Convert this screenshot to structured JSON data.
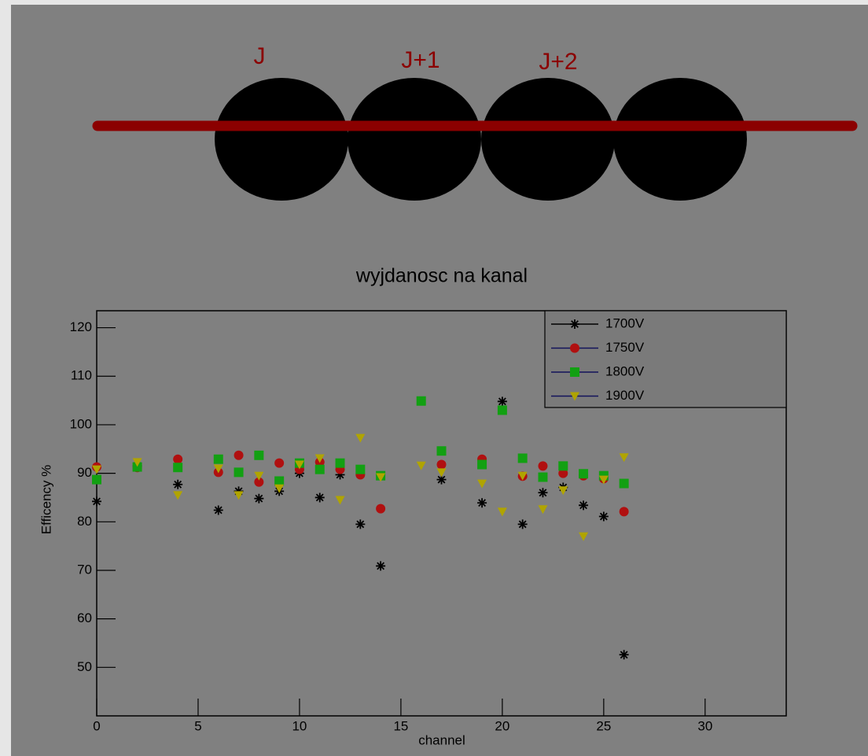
{
  "diagram": {
    "labels": [
      "J",
      "J+1",
      "J+2"
    ]
  },
  "chart_data": {
    "type": "scatter",
    "title": "wyjdanosc na kanal",
    "x_label": "channel",
    "y_label": "Efficency %",
    "xlim": [
      0,
      34
    ],
    "ylim": [
      40,
      123.5
    ],
    "xticks": [
      0,
      5,
      10,
      15,
      20,
      25,
      30
    ],
    "yticks": [
      50,
      60,
      70,
      80,
      90,
      100,
      110,
      120
    ],
    "legend": "upper right",
    "series": [
      {
        "name": "1700V",
        "color": "#000000",
        "line_color": "#000000",
        "marker": "star",
        "x": [
          0,
          2,
          4,
          6,
          7,
          8,
          9,
          10,
          11,
          12,
          13,
          14,
          17,
          19,
          20,
          21,
          22,
          23,
          24,
          25,
          26
        ],
        "values": [
          84.2,
          91.5,
          87.7,
          82.4,
          86.3,
          84.8,
          86.3,
          90,
          85,
          89.7,
          79.5,
          70.9,
          88.7,
          83.9,
          104.8,
          79.5,
          86,
          87.1,
          83.4,
          81.1,
          52.6
        ]
      },
      {
        "name": "1750V",
        "color": "#b01010",
        "line_color": "#12125a",
        "marker": "circle",
        "x": [
          0,
          2,
          4,
          6,
          7,
          8,
          9,
          10,
          11,
          12,
          13,
          14,
          17,
          19,
          21,
          22,
          23,
          24,
          25,
          26
        ],
        "values": [
          91.3,
          91.2,
          92.9,
          90.2,
          93.7,
          88.2,
          92.1,
          90.8,
          92.3,
          90.8,
          89.7,
          82.7,
          91.8,
          92.9,
          89.4,
          91.5,
          90,
          89.5,
          88.9,
          82.1
        ]
      },
      {
        "name": "1800V",
        "color": "#12a012",
        "line_color": "#12125a",
        "marker": "square",
        "x": [
          0,
          2,
          4,
          6,
          7,
          8,
          9,
          10,
          11,
          12,
          13,
          14,
          16,
          17,
          19,
          20,
          21,
          22,
          23,
          24,
          25,
          26
        ],
        "values": [
          88.7,
          91.3,
          91.2,
          92.9,
          90.2,
          93.7,
          88.4,
          92.1,
          90.8,
          92.1,
          90.8,
          89.5,
          104.9,
          94.6,
          91.8,
          103,
          93.1,
          89.2,
          91.5,
          89.9,
          89.5,
          87.9
        ]
      },
      {
        "name": "1900V",
        "color": "#b0a400",
        "line_color": "#12125a",
        "marker": "triangle-down",
        "x": [
          0,
          2,
          4,
          6,
          7,
          8,
          9,
          10,
          11,
          12,
          13,
          14,
          16,
          17,
          19,
          20,
          21,
          22,
          23,
          24,
          25,
          26
        ],
        "values": [
          90.8,
          92.3,
          85.5,
          91,
          85.5,
          89.5,
          86.9,
          91.8,
          93.1,
          84.5,
          97.3,
          89.2,
          91.6,
          90.2,
          87.9,
          82.1,
          89.5,
          82.6,
          86.5,
          77,
          88.7,
          93.3
        ]
      }
    ]
  }
}
